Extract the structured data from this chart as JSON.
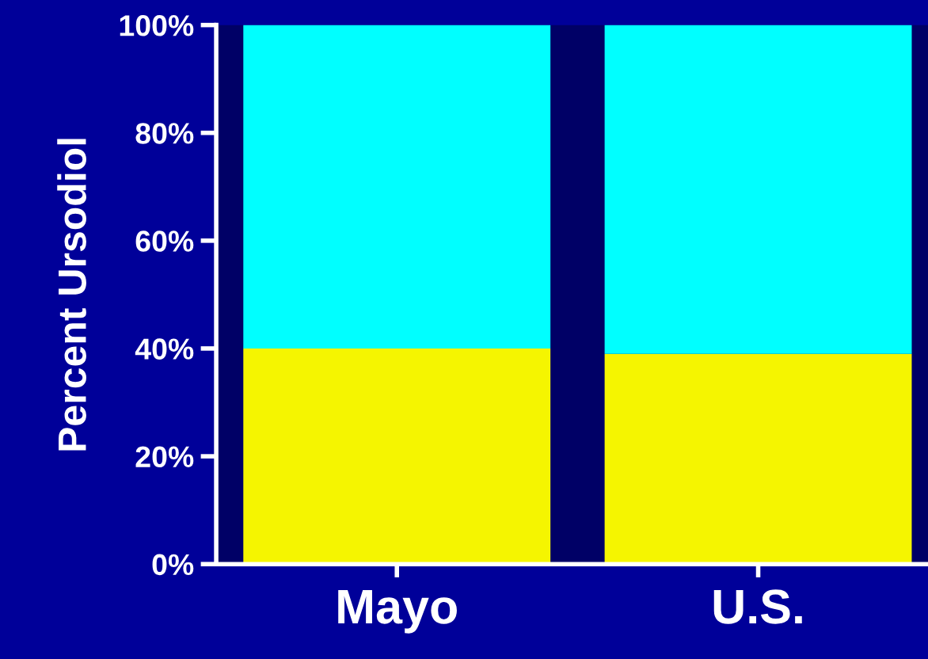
{
  "chart_data": {
    "type": "bar",
    "stacked": true,
    "ylabel": "Percent Ursodiol",
    "categories": [
      "Mayo",
      "U.S."
    ],
    "series": [
      {
        "color": "#f5f500",
        "values": [
          40,
          39
        ]
      },
      {
        "color": "#00ffff",
        "values": [
          60,
          61
        ]
      }
    ],
    "ylim": [
      0,
      100
    ],
    "yticks": [
      {
        "value": 0,
        "label": "0%"
      },
      {
        "value": 20,
        "label": "20%"
      },
      {
        "value": 40,
        "label": "40%"
      },
      {
        "value": 60,
        "label": "60%"
      },
      {
        "value": 80,
        "label": "80%"
      },
      {
        "value": 100,
        "label": "100%"
      }
    ],
    "bands": [
      {
        "axis": "y",
        "from": 0,
        "to": 100,
        "color": "#000066"
      }
    ],
    "grid": false,
    "legend": false
  }
}
